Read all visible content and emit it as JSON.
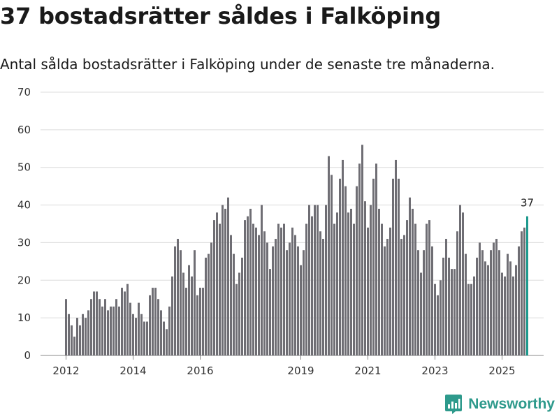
{
  "title": "37 bostadsrätter såldes i Falköping",
  "subtitle": "Antal sålda bostadsrätter i Falköping under de senaste tre månaderna.",
  "brand": "Newsworthy",
  "colors": {
    "bar": "#6f6e74",
    "highlight": "#1e9a8e",
    "grid": "#dcdcdc",
    "brand": "#2e9a8c"
  },
  "chart_data": {
    "type": "bar",
    "title": "Antal sålda bostadsrätter",
    "xlabel": "",
    "ylabel": "",
    "ylim": [
      0,
      70
    ],
    "yticks": [
      0,
      10,
      20,
      30,
      40,
      50,
      60,
      70
    ],
    "x_start": 2012.0,
    "x_step": 0.08333,
    "xticks": [
      {
        "label": "2012",
        "x": 2012.0
      },
      {
        "label": "2014",
        "x": 2014.0
      },
      {
        "label": "2016",
        "x": 2016.0
      },
      {
        "label": "2019",
        "x": 2019.0
      },
      {
        "label": "2021",
        "x": 2021.0
      },
      {
        "label": "2023",
        "x": 2023.0
      },
      {
        "label": "2025",
        "x": 2025.0
      }
    ],
    "values": [
      15,
      11,
      8,
      5,
      10,
      8,
      11,
      10,
      12,
      15,
      17,
      17,
      15,
      13,
      15,
      12,
      13,
      13,
      15,
      13,
      18,
      17,
      19,
      14,
      11,
      10,
      14,
      11,
      9,
      9,
      16,
      18,
      18,
      15,
      12,
      9,
      7,
      13,
      21,
      29,
      31,
      28,
      22,
      18,
      24,
      21,
      28,
      16,
      18,
      18,
      26,
      27,
      30,
      36,
      38,
      35,
      40,
      39,
      42,
      32,
      27,
      19,
      22,
      26,
      36,
      37,
      39,
      35,
      34,
      32,
      40,
      33,
      30,
      23,
      29,
      31,
      35,
      34,
      35,
      28,
      30,
      34,
      32,
      29,
      24,
      28,
      35,
      40,
      37,
      40,
      40,
      33,
      31,
      40,
      53,
      48,
      35,
      38,
      47,
      52,
      45,
      38,
      39,
      35,
      45,
      51,
      56,
      41,
      34,
      40,
      47,
      51,
      39,
      35,
      29,
      31,
      34,
      47,
      52,
      47,
      31,
      32,
      36,
      42,
      39,
      35,
      28,
      22,
      28,
      35,
      36,
      29,
      19,
      16,
      20,
      26,
      31,
      26,
      23,
      23,
      33,
      40,
      38,
      27,
      19,
      19,
      21,
      26,
      30,
      28,
      25,
      24,
      28,
      30,
      31,
      28,
      22,
      21,
      27,
      25,
      21,
      24,
      29,
      33,
      34,
      37
    ],
    "highlight_index": 165,
    "highlight_label": "37"
  }
}
